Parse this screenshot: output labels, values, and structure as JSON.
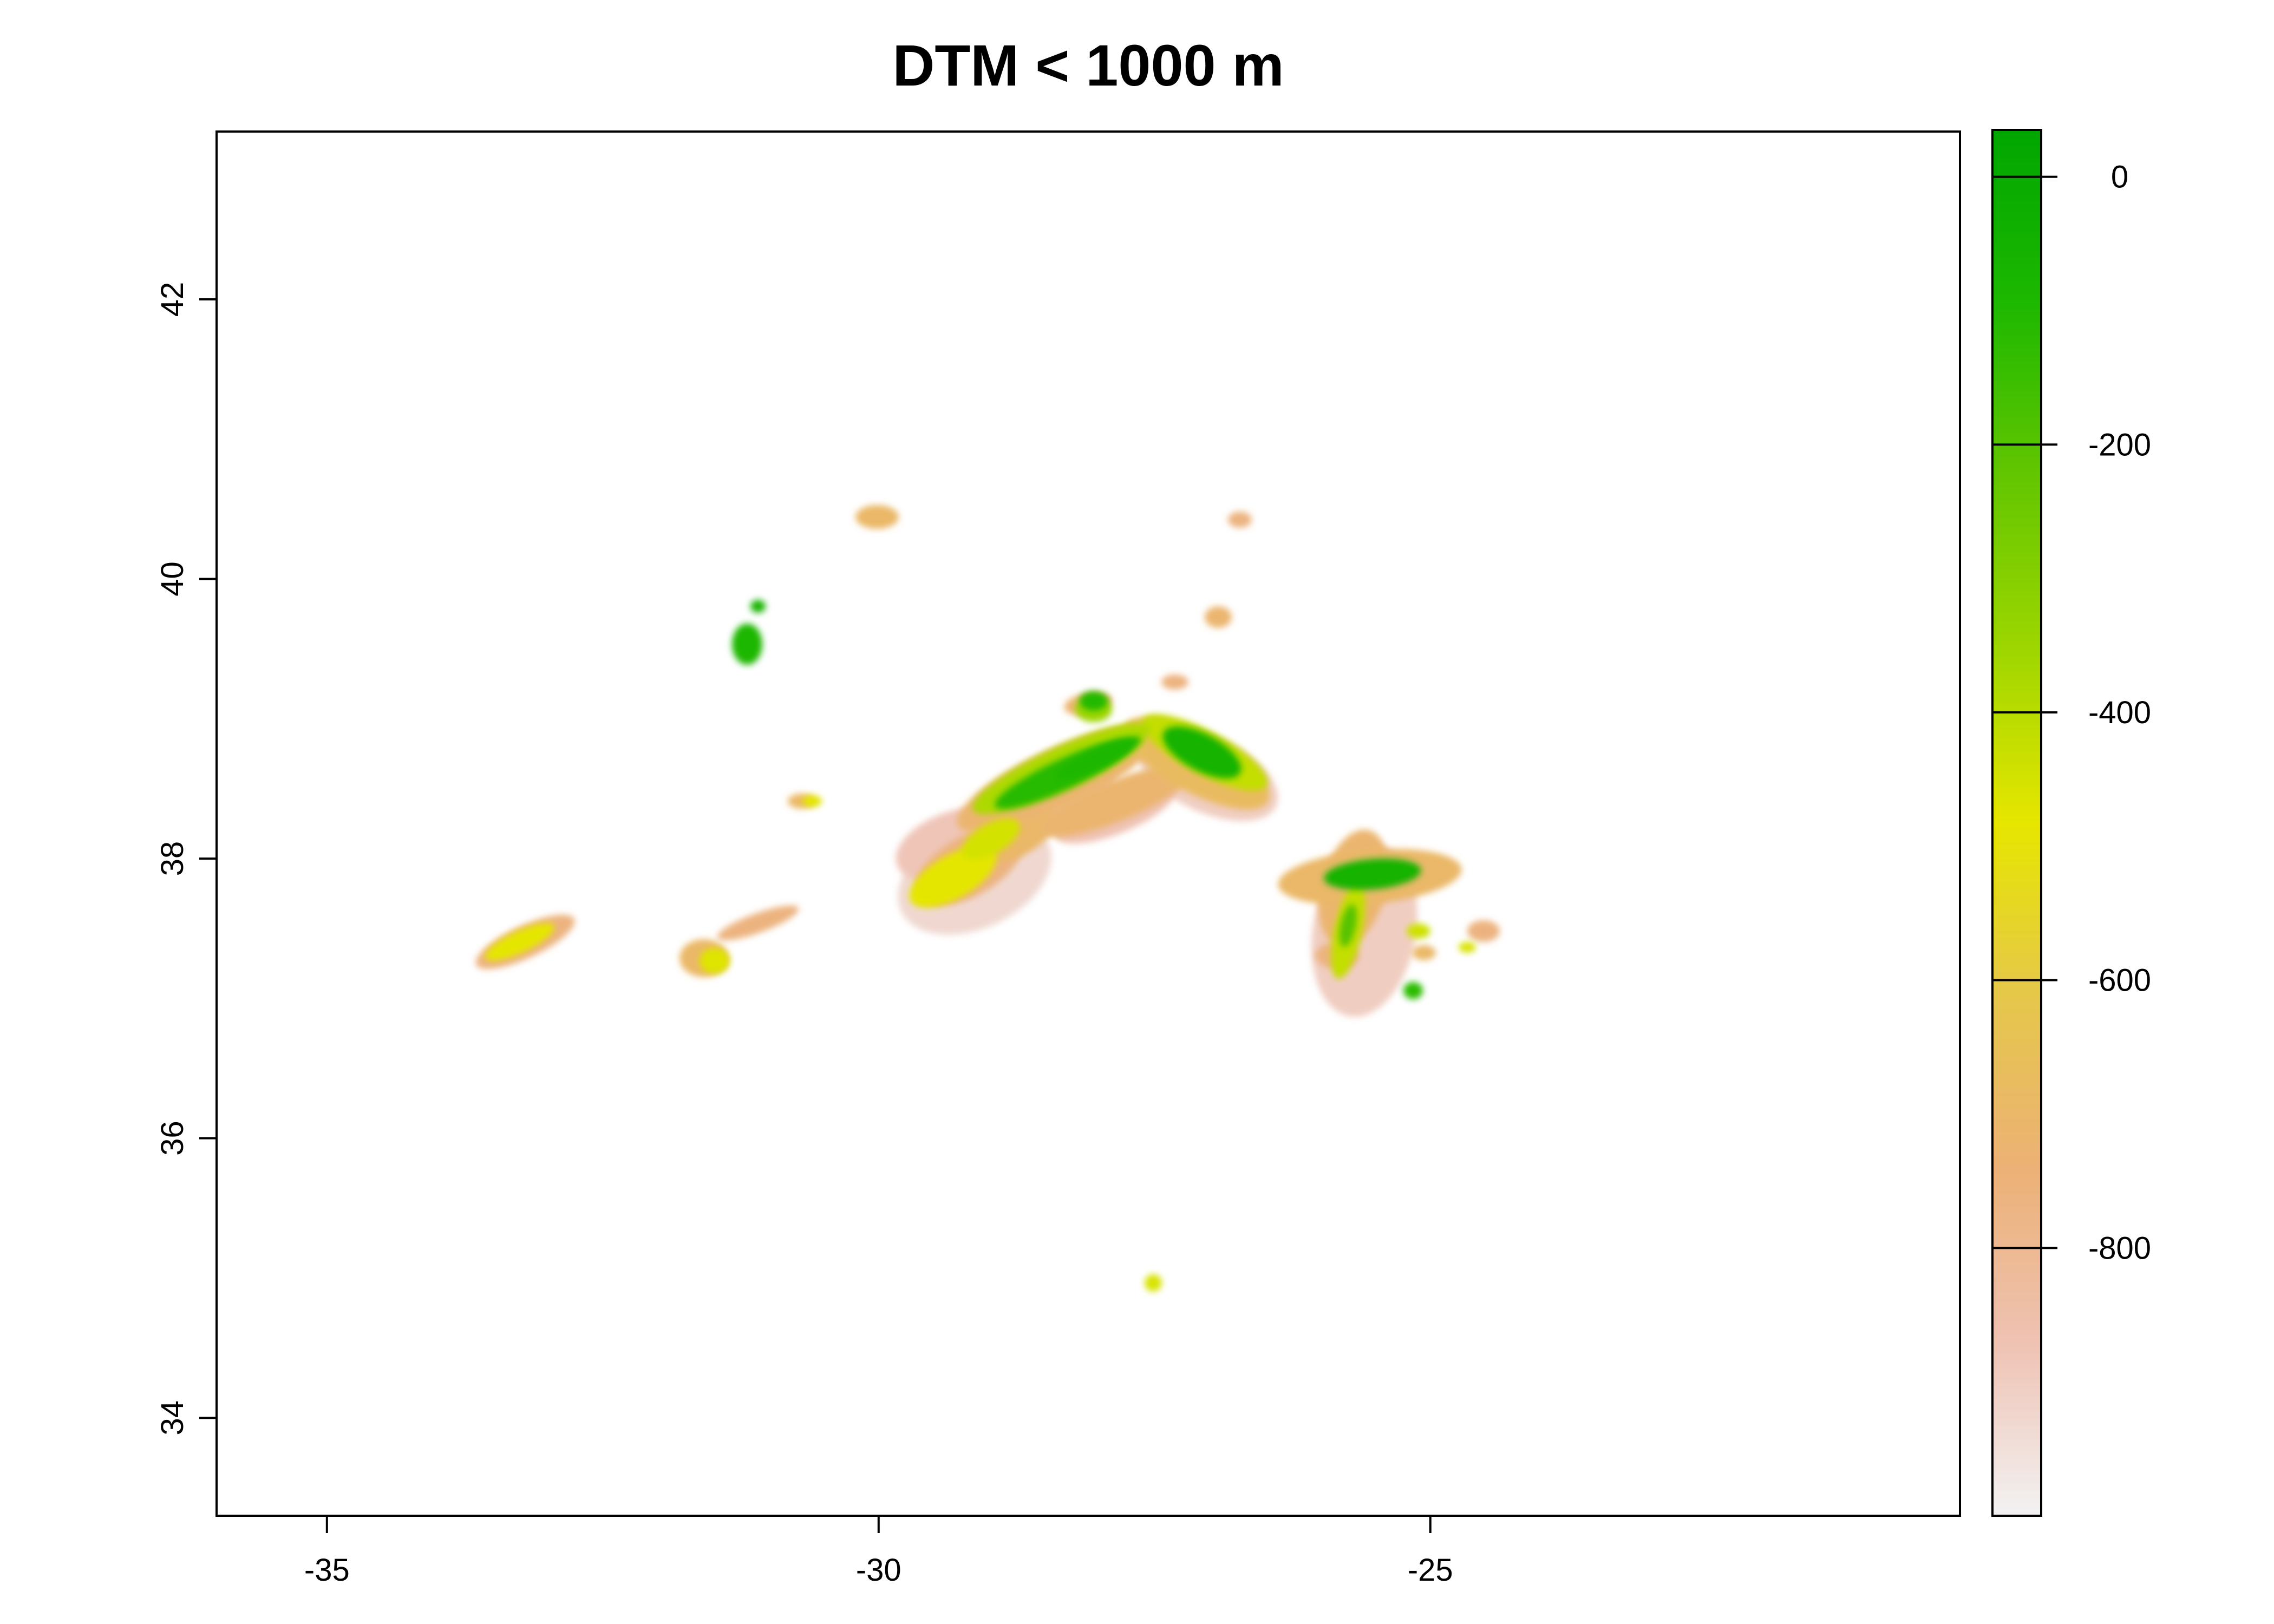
{
  "chart_data": {
    "type": "heatmap",
    "title": "DTM < 1000 m",
    "xlabel": "",
    "ylabel": "",
    "xlim": [
      -36,
      -20.2
    ],
    "ylim": [
      33.3,
      43.2
    ],
    "x_ticks": [
      -35,
      -30,
      -25
    ],
    "x_tick_labels": [
      "-35",
      "-30",
      "-25"
    ],
    "y_ticks": [
      34,
      36,
      38,
      40,
      42
    ],
    "y_tick_labels": [
      "34",
      "36",
      "38",
      "40",
      "42"
    ],
    "grid": false,
    "legend_placement": "right",
    "colorbar": {
      "range": [
        -1000,
        35
      ],
      "ticks": [
        0,
        -200,
        -400,
        -600,
        -800
      ],
      "tick_labels": [
        "0",
        "-200",
        "-400",
        "-600",
        "-800"
      ],
      "colors": [
        "#f2f2f2",
        "#efc2b3",
        "#ecb176",
        "#e6c74a",
        "#e6e600",
        "#9ed600",
        "#63c600",
        "#1db800",
        "#00a600"
      ]
    },
    "features": [
      {
        "lon": -27.2,
        "lat": 38.72,
        "depth": -100
      },
      {
        "lon": -28.6,
        "lat": 38.5,
        "depth": -150
      },
      {
        "lon": -28.1,
        "lat": 38.62,
        "depth": -150
      },
      {
        "lon": -25.5,
        "lat": 37.8,
        "depth": -80
      },
      {
        "lon": -31.2,
        "lat": 39.45,
        "depth": -120
      },
      {
        "lon": -27.9,
        "lat": 39.06,
        "depth": -150
      },
      {
        "lon": -29.0,
        "lat": 38.0,
        "depth": -350
      },
      {
        "lon": -25.1,
        "lat": 36.98,
        "depth": -150
      },
      {
        "lon": -32.9,
        "lat": 37.35,
        "depth": -450
      },
      {
        "lon": -31.4,
        "lat": 37.15,
        "depth": -500
      },
      {
        "lon": -27.5,
        "lat": 34.85,
        "depth": -450
      },
      {
        "lon": -29.9,
        "lat": 40.35,
        "depth": -600
      }
    ]
  }
}
